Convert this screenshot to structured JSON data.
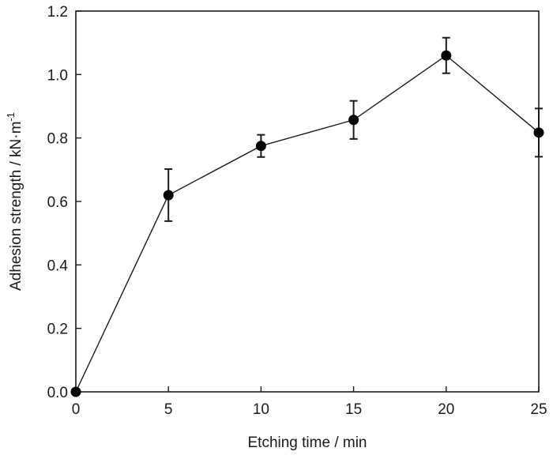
{
  "chart_data": {
    "type": "line",
    "title": "",
    "xlabel": "Etching time  /  min",
    "ylabel": {
      "main": "Adhesion strength / kN·m",
      "superscript": "-1"
    },
    "xlim": [
      0,
      25
    ],
    "ylim": [
      0,
      1.2
    ],
    "x_ticks": [
      "0",
      "5",
      "10",
      "15",
      "20",
      "25"
    ],
    "y_ticks": [
      "0.0",
      "0.2",
      "0.4",
      "0.6",
      "0.8",
      "1.0",
      "1.2"
    ],
    "grid": false,
    "legend": "none",
    "series": [
      {
        "x": [
          0,
          5,
          10,
          15,
          20,
          25
        ],
        "y": [
          0.0,
          0.62,
          0.775,
          0.857,
          1.06,
          0.817
        ],
        "error": [
          0,
          0.082,
          0.035,
          0.06,
          0.056,
          0.076
        ]
      }
    ],
    "colors": {
      "line": "#1a1a1a",
      "marker": "#000000",
      "axis": "#1a1a1a"
    }
  }
}
